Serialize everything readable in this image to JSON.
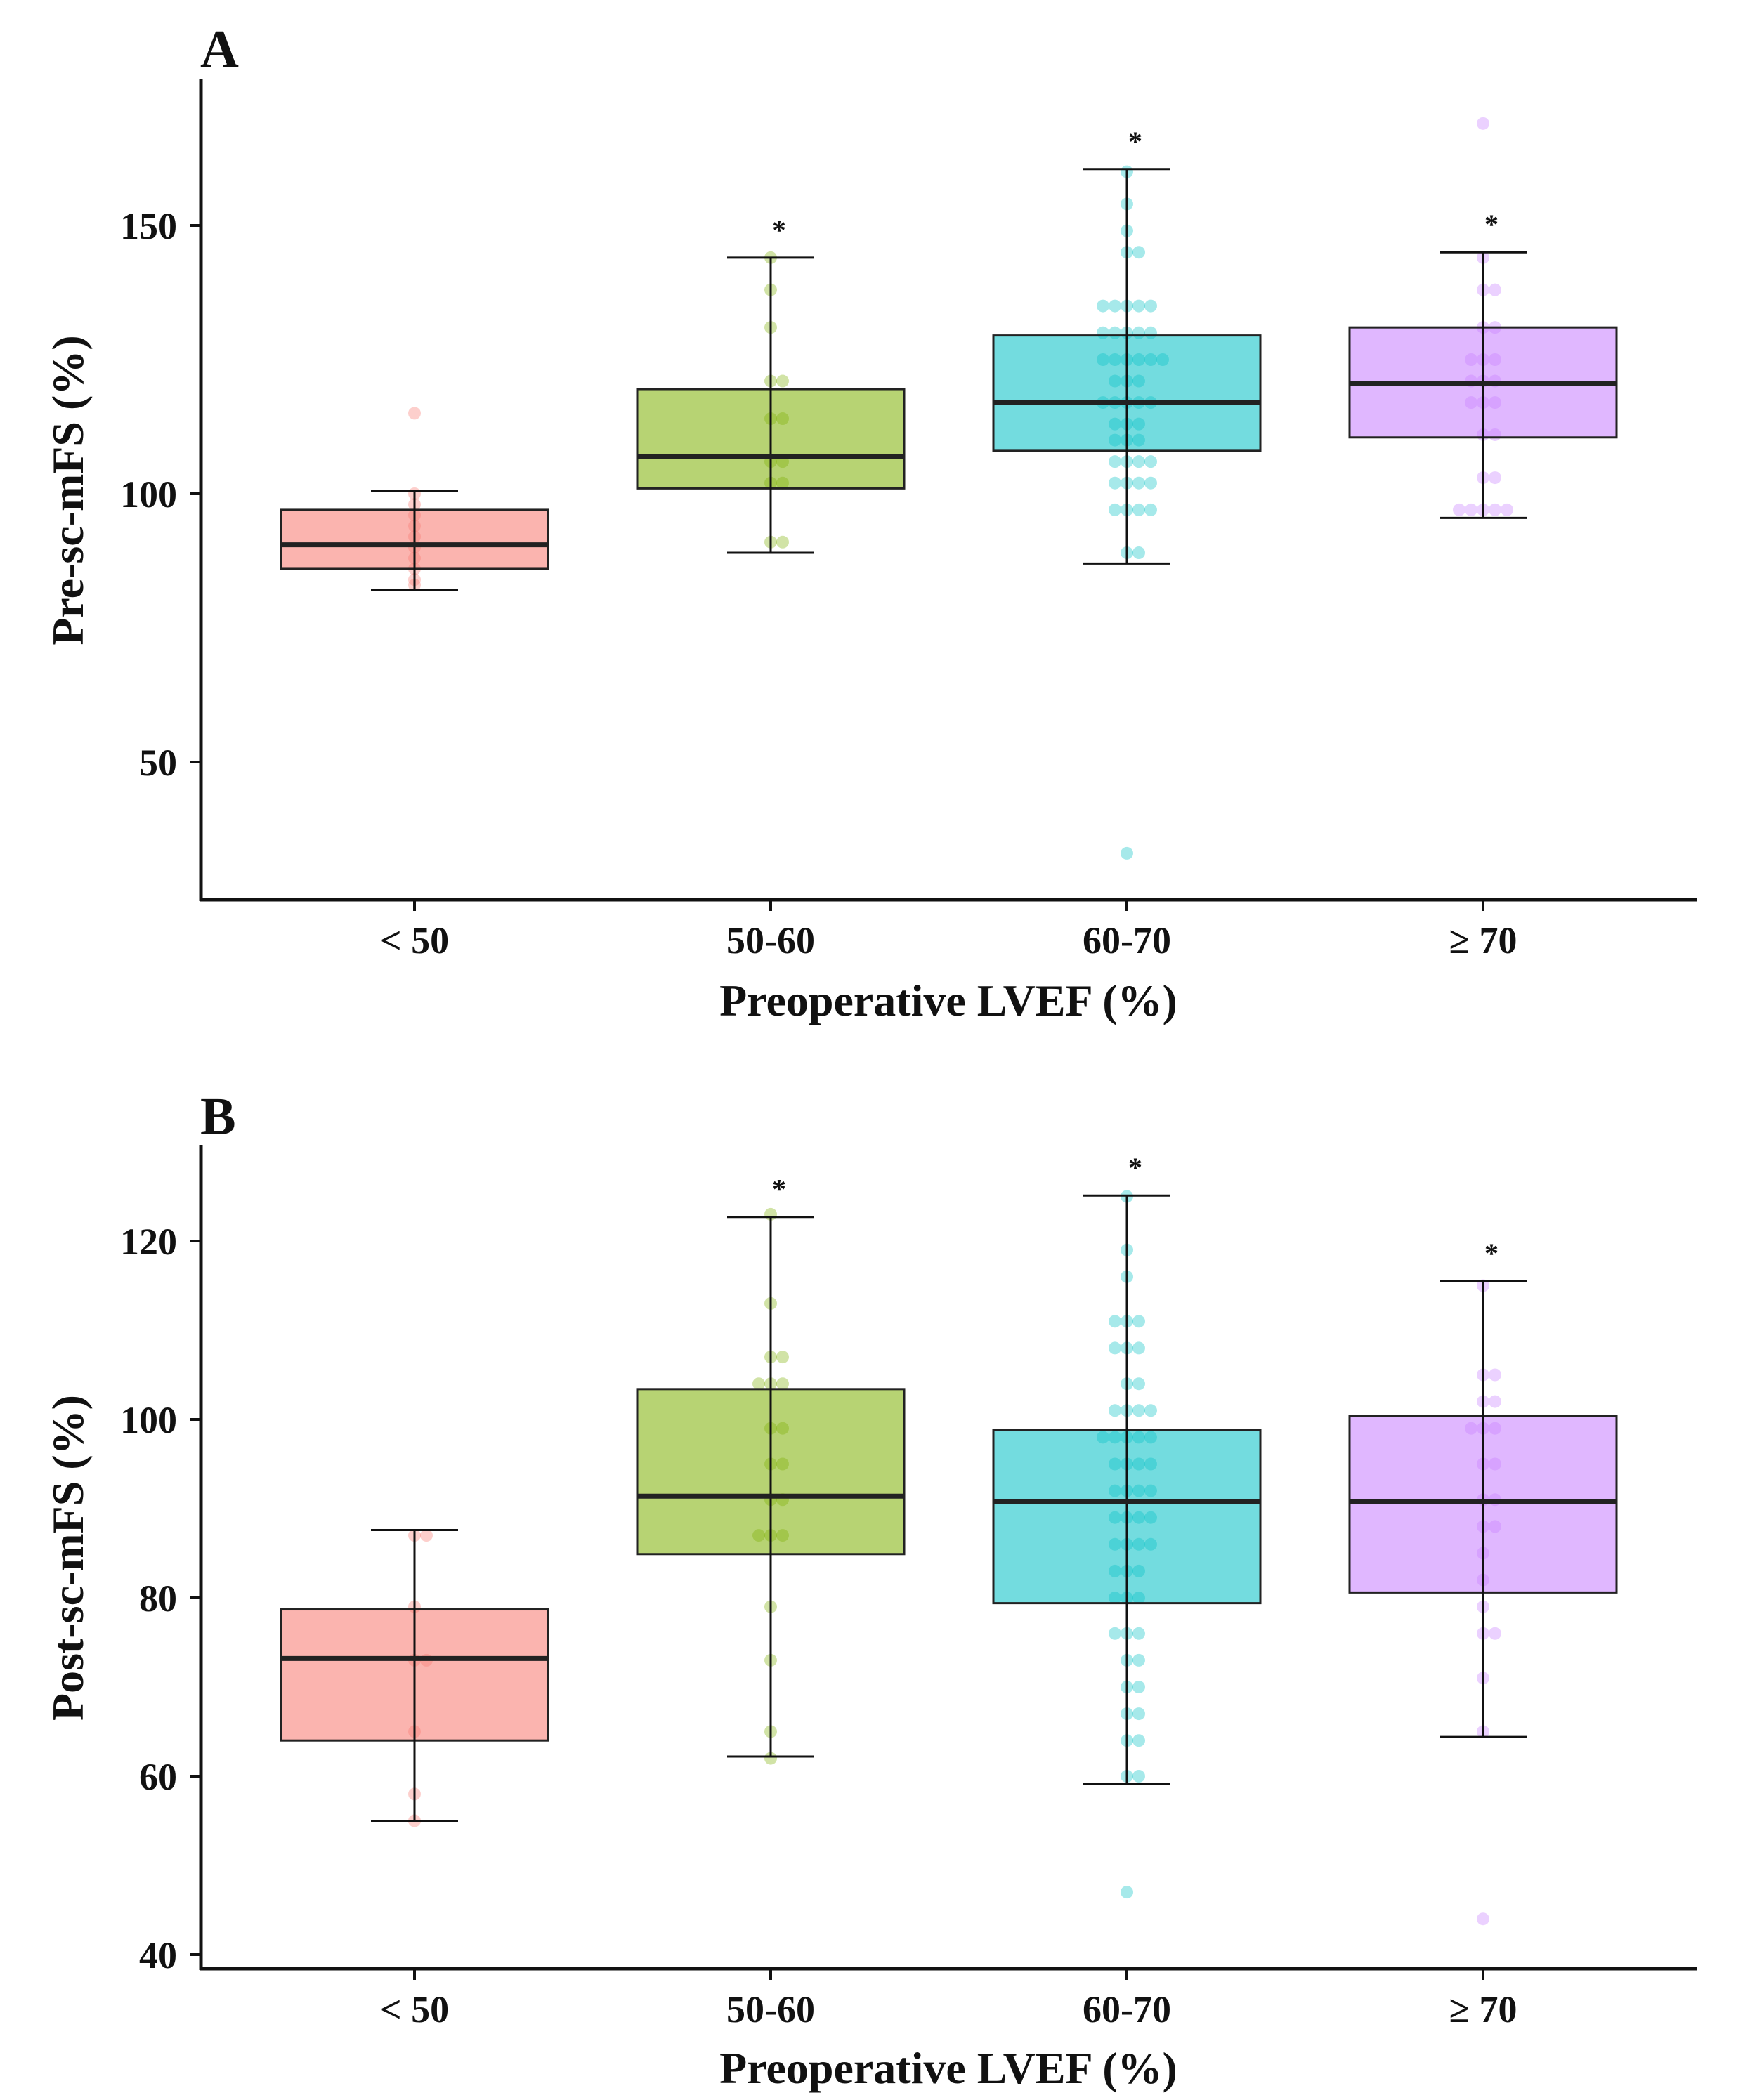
{
  "chart_data": [
    {
      "type": "box",
      "panel_label": "A",
      "xlabel": "Preoperative LVEF (%)",
      "ylabel": "Pre-sc-mFS (%)",
      "ylim": [
        22,
        178
      ],
      "yticks": [
        "50",
        "100",
        "150"
      ],
      "yticks_values": [
        50,
        100,
        150
      ],
      "categories": [
        "< 50",
        "50-60",
        "60-70",
        "≥ 70"
      ],
      "colors": [
        "#F8766D",
        "#7CAE00",
        "#00BFC4",
        "#C77CFF"
      ],
      "boxes": [
        {
          "whisker_low": 82,
          "q1": 86,
          "median": 90.5,
          "q3": 97,
          "whisker_high": 100.5,
          "significance": ""
        },
        {
          "whisker_low": 89,
          "q1": 101,
          "median": 107,
          "q3": 119.5,
          "whisker_high": 144,
          "significance": "*"
        },
        {
          "whisker_low": 87,
          "q1": 108,
          "median": 117,
          "q3": 129.5,
          "whisker_high": 160.5,
          "significance": "*"
        },
        {
          "whisker_low": 95.5,
          "q1": 110.5,
          "median": 120.5,
          "q3": 131,
          "whisker_high": 145,
          "significance": "*"
        }
      ],
      "points": [
        [
          115,
          100,
          98,
          96,
          94,
          92,
          90,
          88,
          86,
          84,
          83
        ],
        [
          144,
          138,
          131,
          121,
          121,
          114,
          114,
          106,
          106,
          102,
          102,
          91,
          91
        ],
        [
          160,
          154,
          149,
          145,
          145,
          135,
          135,
          135,
          135,
          135,
          130,
          130,
          130,
          130,
          130,
          125,
          125,
          125,
          125,
          125,
          125,
          121,
          121,
          121,
          117,
          117,
          117,
          117,
          117,
          113,
          113,
          113,
          110,
          110,
          110,
          106,
          106,
          106,
          106,
          102,
          102,
          102,
          102,
          97,
          97,
          97,
          97,
          89,
          89,
          33
        ],
        [
          169,
          144,
          138,
          138,
          131,
          131,
          125,
          125,
          125,
          121,
          121,
          121,
          117,
          117,
          117,
          111,
          111,
          103,
          103,
          97,
          97,
          97,
          97,
          97
        ]
      ]
    },
    {
      "type": "box",
      "panel_label": "B",
      "xlabel": "Preoperative LVEF (%)",
      "ylabel": "Post-sc-mFS (%)",
      "ylim": [
        39.5,
        130.5
      ],
      "yticks": [
        "40",
        "60",
        "80",
        "100",
        "120"
      ],
      "yticks_values": [
        40,
        60,
        80,
        100,
        120
      ],
      "categories": [
        "< 50",
        "50-60",
        "60-70",
        "≥ 70"
      ],
      "colors": [
        "#F8766D",
        "#7CAE00",
        "#00BFC4",
        "#C77CFF"
      ],
      "boxes": [
        {
          "whisker_low": 55,
          "q1": 64,
          "median": 73.2,
          "q3": 78.7,
          "whisker_high": 87.6,
          "significance": ""
        },
        {
          "whisker_low": 62.2,
          "q1": 84.9,
          "median": 91.4,
          "q3": 103.4,
          "whisker_high": 122.7,
          "significance": "*"
        },
        {
          "whisker_low": 59.1,
          "q1": 79.4,
          "median": 90.8,
          "q3": 98.8,
          "whisker_high": 125.1,
          "significance": "*"
        },
        {
          "whisker_low": 64.4,
          "q1": 80.6,
          "median": 90.8,
          "q3": 100.4,
          "whisker_high": 115.5,
          "significance": "*"
        }
      ],
      "points": [
        [
          87,
          87,
          79,
          73,
          73,
          65,
          58,
          55
        ],
        [
          123,
          113,
          107,
          107,
          104,
          104,
          104,
          99,
          99,
          95,
          95,
          91,
          91,
          87,
          87,
          87,
          79,
          73,
          65,
          62
        ],
        [
          125,
          119,
          116,
          111,
          111,
          111,
          108,
          108,
          108,
          104,
          104,
          101,
          101,
          101,
          101,
          98,
          98,
          98,
          98,
          98,
          95,
          95,
          95,
          95,
          92,
          92,
          92,
          92,
          89,
          89,
          89,
          89,
          86,
          86,
          86,
          86,
          83,
          83,
          83,
          80,
          80,
          80,
          76,
          76,
          76,
          73,
          73,
          70,
          70,
          67,
          67,
          64,
          64,
          60,
          60,
          47
        ],
        [
          115,
          105,
          105,
          102,
          102,
          99,
          99,
          99,
          95,
          95,
          91,
          91,
          88,
          88,
          85,
          82,
          79,
          76,
          76,
          71,
          65,
          44
        ]
      ]
    }
  ]
}
